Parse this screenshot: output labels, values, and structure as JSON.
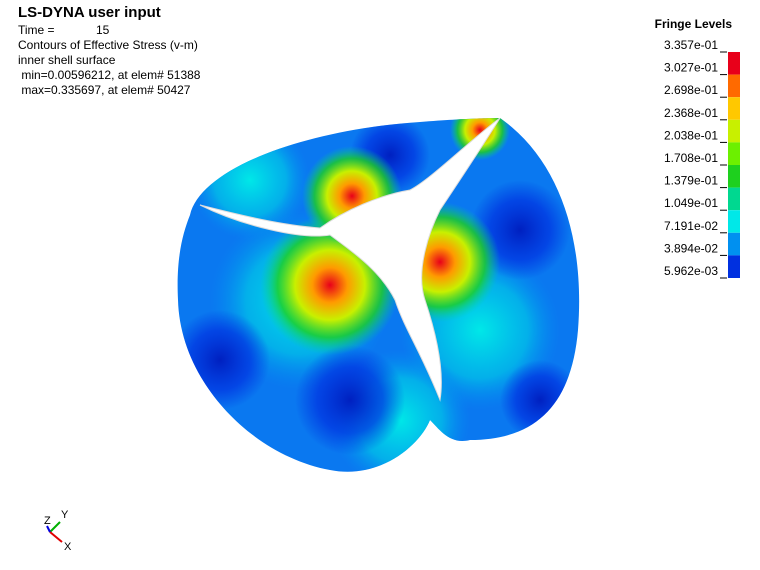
{
  "header": {
    "title": "LS-DYNA user input",
    "time_label": "Time =",
    "time_value": 15,
    "contour": "Contours of Effective Stress (v-m)",
    "surface": "inner shell surface",
    "min": " min=0.00596212, at elem# 51388",
    "max": " max=0.335697, at elem# 50427"
  },
  "legend": {
    "title": "Fringe Levels",
    "levels": [
      "3.357e-01",
      "3.027e-01",
      "2.698e-01",
      "2.368e-01",
      "2.038e-01",
      "1.708e-01",
      "1.379e-01",
      "1.049e-01",
      "7.191e-02",
      "3.894e-02",
      "5.962e-03"
    ],
    "colors": [
      "#e8001a",
      "#ff6a00",
      "#ffc800",
      "#c8f000",
      "#6cf000",
      "#1ed01e",
      "#00d890",
      "#00e8e8",
      "#0090f0",
      "#0030e0"
    ]
  },
  "triad": {
    "z": "Z",
    "y": "Y",
    "x": "X"
  }
}
